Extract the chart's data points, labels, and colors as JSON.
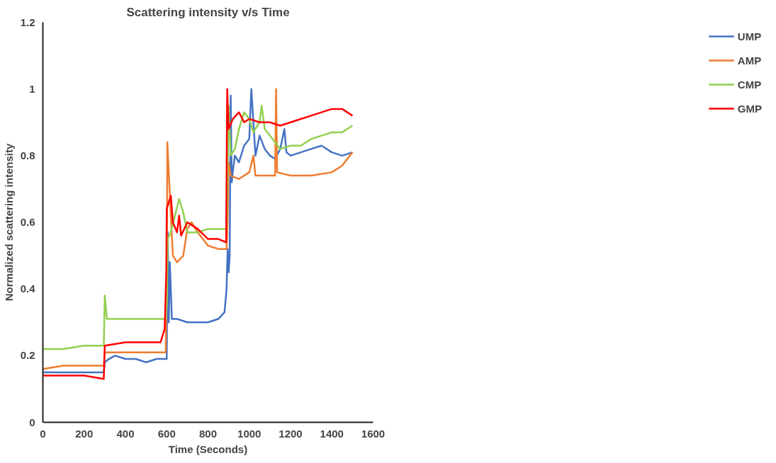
{
  "chart_data": {
    "type": "line",
    "title": "Scattering intensity v/s Time",
    "xlabel": "Time (Seconds)",
    "ylabel": "Normalized scattering intensity",
    "xlim": [
      0,
      1600
    ],
    "xticks": [
      0,
      200,
      400,
      600,
      800,
      1000,
      1200,
      1400,
      1600
    ],
    "ylim": [
      0,
      1.2
    ],
    "yticks": [
      0,
      0.2,
      0.4,
      0.6,
      0.8,
      1,
      1.2
    ],
    "grid": false,
    "legend": "right",
    "marker": "none",
    "line_style": "solid",
    "series": [
      {
        "name": "UMP",
        "color": "#4472c4",
        "x": [
          0,
          100,
          200,
          295,
          300,
          320,
          350,
          400,
          450,
          500,
          550,
          595,
          600,
          605,
          610,
          615,
          625,
          650,
          700,
          750,
          800,
          850,
          880,
          890,
          895,
          900,
          905,
          910,
          915,
          920,
          930,
          950,
          975,
          1000,
          1010,
          1020,
          1030,
          1050,
          1075,
          1100,
          1125,
          1150,
          1170,
          1180,
          1200,
          1250,
          1300,
          1350,
          1400,
          1450,
          1500
        ],
        "values": [
          0.15,
          0.15,
          0.15,
          0.15,
          0.18,
          0.19,
          0.2,
          0.19,
          0.19,
          0.18,
          0.19,
          0.19,
          0.19,
          0.57,
          0.3,
          0.48,
          0.31,
          0.31,
          0.3,
          0.3,
          0.3,
          0.31,
          0.33,
          0.4,
          0.52,
          0.45,
          0.5,
          0.98,
          0.72,
          0.75,
          0.8,
          0.78,
          0.83,
          0.85,
          1.0,
          0.9,
          0.8,
          0.86,
          0.82,
          0.8,
          0.79,
          0.82,
          0.88,
          0.81,
          0.8,
          0.81,
          0.82,
          0.83,
          0.81,
          0.8,
          0.81
        ]
      },
      {
        "name": "AMP",
        "color": "#ed7d31",
        "x": [
          0,
          100,
          200,
          295,
          300,
          400,
          500,
          595,
          600,
          603,
          610,
          620,
          630,
          650,
          680,
          700,
          720,
          750,
          800,
          850,
          890,
          895,
          900,
          910,
          950,
          1000,
          1020,
          1030,
          1100,
          1125,
          1130,
          1135,
          1200,
          1300,
          1400,
          1450,
          1500
        ],
        "values": [
          0.16,
          0.17,
          0.17,
          0.17,
          0.21,
          0.21,
          0.21,
          0.21,
          0.4,
          0.84,
          0.75,
          0.62,
          0.5,
          0.48,
          0.5,
          0.58,
          0.6,
          0.57,
          0.53,
          0.52,
          0.52,
          0.6,
          0.78,
          0.74,
          0.73,
          0.75,
          0.8,
          0.74,
          0.74,
          0.74,
          1.0,
          0.75,
          0.74,
          0.74,
          0.75,
          0.77,
          0.81
        ]
      },
      {
        "name": "CMP",
        "color": "#92d050",
        "x": [
          0,
          100,
          200,
          295,
          300,
          310,
          400,
          500,
          595,
          600,
          605,
          620,
          640,
          660,
          680,
          700,
          750,
          800,
          850,
          890,
          895,
          900,
          910,
          930,
          950,
          975,
          1000,
          1020,
          1050,
          1060,
          1075,
          1100,
          1150,
          1200,
          1250,
          1300,
          1350,
          1400,
          1450,
          1500
        ],
        "values": [
          0.22,
          0.22,
          0.23,
          0.23,
          0.38,
          0.31,
          0.31,
          0.31,
          0.31,
          0.35,
          0.55,
          0.57,
          0.62,
          0.67,
          0.63,
          0.57,
          0.57,
          0.58,
          0.58,
          0.58,
          0.75,
          0.95,
          0.8,
          0.82,
          0.88,
          0.93,
          0.91,
          0.87,
          0.9,
          0.95,
          0.88,
          0.86,
          0.82,
          0.83,
          0.83,
          0.85,
          0.86,
          0.87,
          0.87,
          0.89
        ]
      },
      {
        "name": "GMP",
        "color": "#ff0000",
        "x": [
          0,
          100,
          200,
          295,
          300,
          400,
          500,
          570,
          590,
          598,
          600,
          620,
          630,
          650,
          660,
          670,
          700,
          750,
          800,
          850,
          888,
          893,
          900,
          920,
          950,
          975,
          1000,
          1050,
          1100,
          1150,
          1200,
          1250,
          1300,
          1350,
          1400,
          1450,
          1500
        ],
        "values": [
          0.14,
          0.14,
          0.14,
          0.13,
          0.23,
          0.24,
          0.24,
          0.24,
          0.28,
          0.45,
          0.64,
          0.68,
          0.6,
          0.57,
          0.62,
          0.56,
          0.6,
          0.58,
          0.55,
          0.55,
          0.54,
          1.0,
          0.88,
          0.91,
          0.93,
          0.9,
          0.91,
          0.9,
          0.9,
          0.89,
          0.9,
          0.91,
          0.92,
          0.93,
          0.94,
          0.94,
          0.92
        ]
      }
    ]
  }
}
